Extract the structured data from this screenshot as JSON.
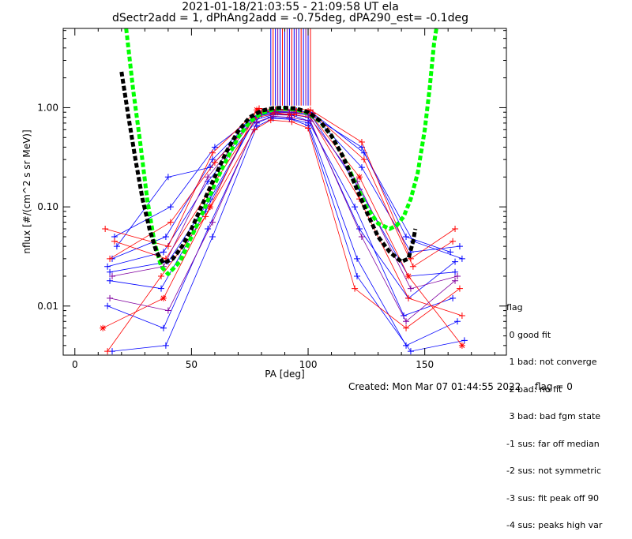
{
  "title_line1": "2021-01-18/21:03:55 - 21:09:58 UT ela",
  "title_line2": "dSectr2add = 1, dPhAng2add = -0.75deg, dPA290_est=  -0.1deg",
  "footer": {
    "created": "Created: Mon Mar 07 01:44:55 2022",
    "flag": "flag = 0"
  },
  "legend": {
    "title": "flag",
    "items": [
      " 0 good fit",
      " 1 bad: not converge",
      " 2 bad: no fit",
      " 3 bad: bad fgm state",
      "-1 sus: far off median",
      "-2 sus: not symmetric",
      "-3 sus: fit peak off 90",
      "-4 sus: peaks high var"
    ]
  },
  "chart_data": {
    "type": "line",
    "title": "2021-01-18/21:03:55 - 21:09:58 UT ela",
    "subtitle": "dSectr2add = 1, dPhAng2add = -0.75deg, dPA290_est=  -0.1deg",
    "xlabel": "PA [deg]",
    "ylabel": "nflux [#/(cm^2 s sr MeV)]",
    "xlim": [
      -5,
      185
    ],
    "ylim": [
      0.0032,
      6.3
    ],
    "yscale": "log",
    "xticks": [
      0,
      50,
      100,
      150
    ],
    "xtick_labels": [
      "0",
      "50",
      "100",
      "150"
    ],
    "yticks": [
      0.01,
      0.1,
      1.0
    ],
    "ytick_labels": [
      "0.01",
      "0.10",
      "1.00"
    ],
    "colors": {
      "blue": "#0000ff",
      "red": "#ff0000",
      "green": "#00ff00",
      "black": "#000000",
      "purple": "#8000a0"
    },
    "series": [
      {
        "color": "blue",
        "marker": "plus",
        "x": [
          15,
          40,
          58,
          78,
          85,
          92,
          100,
          122,
          143,
          163
        ],
        "y": [
          0.022,
          0.028,
          0.12,
          0.82,
          0.88,
          0.86,
          0.8,
          0.06,
          0.012,
          0.028
        ]
      },
      {
        "color": "blue",
        "marker": "plus",
        "x": [
          16,
          39,
          59,
          79,
          86,
          94,
          101,
          123,
          144,
          165
        ],
        "y": [
          0.03,
          0.05,
          0.3,
          0.9,
          0.95,
          0.93,
          0.9,
          0.25,
          0.035,
          0.04
        ]
      },
      {
        "color": "blue",
        "marker": "plus",
        "x": [
          14,
          38,
          57,
          78,
          84,
          92,
          100,
          121,
          142,
          164
        ],
        "y": [
          0.01,
          0.006,
          0.06,
          0.7,
          0.8,
          0.78,
          0.7,
          0.03,
          0.004,
          0.007
        ]
      },
      {
        "color": "blue",
        "marker": "plus",
        "x": [
          17,
          41,
          60,
          80,
          87,
          95,
          102,
          124,
          145,
          166
        ],
        "y": [
          0.05,
          0.1,
          0.4,
          0.92,
          0.96,
          0.94,
          0.88,
          0.35,
          0.045,
          0.03
        ]
      },
      {
        "color": "blue",
        "marker": "plus",
        "x": [
          15,
          37,
          56,
          77,
          85,
          93,
          100,
          120,
          141,
          162
        ],
        "y": [
          0.018,
          0.015,
          0.09,
          0.75,
          0.85,
          0.84,
          0.74,
          0.1,
          0.008,
          0.012
        ]
      },
      {
        "color": "blue",
        "marker": "plus",
        "x": [
          18,
          40,
          58,
          79,
          86,
          94,
          101,
          122,
          143,
          163
        ],
        "y": [
          0.04,
          0.2,
          0.25,
          0.88,
          0.92,
          0.9,
          0.86,
          0.15,
          0.02,
          0.022
        ]
      },
      {
        "color": "blue",
        "marker": "plus",
        "x": [
          16,
          39,
          59,
          78,
          85,
          93,
          100,
          121,
          144,
          167
        ],
        "y": [
          0.0035,
          0.004,
          0.05,
          0.65,
          0.78,
          0.76,
          0.66,
          0.02,
          0.0035,
          0.0045
        ]
      },
      {
        "color": "blue",
        "marker": "plus",
        "x": [
          14,
          38,
          57,
          80,
          87,
          95,
          102,
          123,
          142,
          161
        ],
        "y": [
          0.025,
          0.035,
          0.18,
          0.85,
          0.9,
          0.88,
          0.82,
          0.4,
          0.05,
          0.035
        ]
      },
      {
        "color": "red",
        "marker": "star",
        "x": [
          12,
          38,
          58,
          78,
          85,
          92,
          100,
          122,
          143,
          166
        ],
        "y": [
          0.006,
          0.012,
          0.1,
          0.95,
          0.9,
          0.85,
          0.92,
          0.2,
          0.02,
          0.004
        ]
      },
      {
        "color": "red",
        "marker": "plus",
        "x": [
          13,
          40,
          59,
          79,
          86,
          94,
          101,
          123,
          144,
          163
        ],
        "y": [
          0.06,
          0.04,
          0.35,
          0.98,
          0.96,
          0.97,
          0.95,
          0.45,
          0.03,
          0.06
        ]
      },
      {
        "color": "red",
        "marker": "plus",
        "x": [
          14,
          37,
          56,
          77,
          84,
          93,
          100,
          120,
          142,
          165
        ],
        "y": [
          0.0035,
          0.02,
          0.08,
          0.6,
          0.75,
          0.72,
          0.62,
          0.015,
          0.006,
          0.015
        ]
      },
      {
        "color": "red",
        "marker": "plus",
        "x": [
          15,
          41,
          60,
          80,
          87,
          95,
          102,
          124,
          145,
          162
        ],
        "y": [
          0.03,
          0.07,
          0.28,
          0.9,
          0.94,
          0.92,
          0.87,
          0.3,
          0.025,
          0.045
        ]
      },
      {
        "color": "red",
        "marker": "plus",
        "x": [
          17,
          39,
          58,
          78,
          85,
          94,
          101,
          122,
          143,
          166
        ],
        "y": [
          0.045,
          0.03,
          0.15,
          0.8,
          0.86,
          0.85,
          0.8,
          0.12,
          0.012,
          0.008
        ]
      },
      {
        "color": "purple",
        "marker": "plus",
        "x": [
          16,
          38,
          57,
          79,
          86,
          93,
          100,
          121,
          144,
          164
        ],
        "y": [
          0.02,
          0.025,
          0.2,
          0.87,
          0.91,
          0.89,
          0.84,
          0.18,
          0.015,
          0.02
        ]
      },
      {
        "color": "purple",
        "marker": "plus",
        "x": [
          15,
          40,
          59,
          78,
          85,
          92,
          101,
          123,
          142,
          163
        ],
        "y": [
          0.012,
          0.009,
          0.07,
          0.72,
          0.82,
          0.8,
          0.73,
          0.05,
          0.007,
          0.018
        ]
      }
    ],
    "fit_curves": [
      {
        "color": "green",
        "style": "dashed",
        "x": [
          22,
          25,
          28,
          31,
          34,
          37,
          40,
          45,
          50,
          55,
          60,
          65,
          70,
          75,
          80,
          85,
          90,
          95,
          100,
          105,
          110,
          115,
          120,
          125,
          130,
          135,
          138,
          141,
          144,
          147,
          150,
          152,
          154,
          155
        ],
        "y": [
          6.3,
          1.5,
          0.45,
          0.12,
          0.045,
          0.025,
          0.021,
          0.028,
          0.05,
          0.09,
          0.17,
          0.3,
          0.5,
          0.72,
          0.88,
          0.96,
          0.98,
          0.96,
          0.88,
          0.73,
          0.52,
          0.32,
          0.18,
          0.1,
          0.068,
          0.06,
          0.065,
          0.08,
          0.12,
          0.22,
          0.6,
          1.5,
          4.5,
          6.3
        ]
      },
      {
        "color": "black",
        "style": "dashed",
        "x": [
          20,
          23,
          26,
          29,
          32,
          35,
          38,
          42,
          46,
          50,
          55,
          60,
          65,
          70,
          75,
          80,
          85,
          90,
          95,
          100,
          105,
          110,
          115,
          120,
          125,
          130,
          135,
          140,
          143,
          145,
          146
        ],
        "y": [
          2.3,
          0.8,
          0.3,
          0.12,
          0.06,
          0.035,
          0.027,
          0.03,
          0.04,
          0.06,
          0.11,
          0.2,
          0.36,
          0.58,
          0.8,
          0.93,
          0.99,
          1.0,
          0.98,
          0.9,
          0.74,
          0.52,
          0.32,
          0.17,
          0.09,
          0.05,
          0.035,
          0.028,
          0.03,
          0.045,
          0.06
        ]
      }
    ],
    "vertical_lines": {
      "x_from": 84,
      "x_to": 101,
      "count": 18,
      "y_top": 6.3,
      "y_bottom": 1.05,
      "colors": [
        "#0000ff",
        "#ff0000",
        "#0000ff",
        "#8000a0"
      ]
    }
  }
}
